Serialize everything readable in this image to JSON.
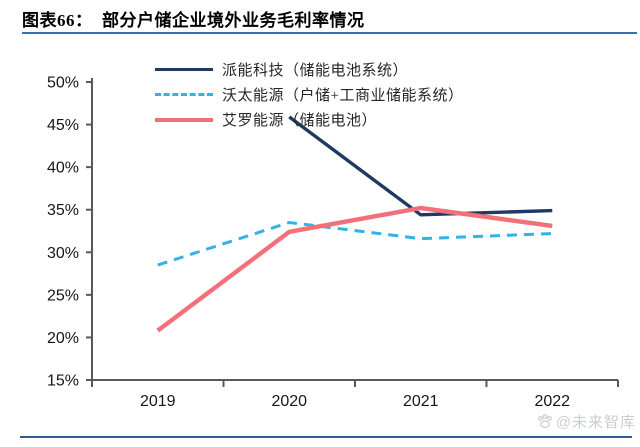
{
  "page": {
    "title": "图表66：  部分户储企业境外业务毛利率情况",
    "watermark_text": "@未来智库",
    "title_rule_color": "#2E74B5",
    "footer_rule_color": "#2b5c96"
  },
  "chart_data": {
    "type": "line",
    "title": "部分户储企业境外业务毛利率情况",
    "categories": [
      "2019",
      "2020",
      "2021",
      "2022"
    ],
    "series": [
      {
        "name": "派能科技（储能电池系统）",
        "color": "#1F3864",
        "style": "solid",
        "width": 3.4,
        "values": [
          null,
          45.9,
          34.4,
          34.9
        ]
      },
      {
        "name": "沃太能源（户储+工商业储能系统）",
        "color": "#2FB3E8",
        "style": "dashed",
        "width": 3.0,
        "values": [
          28.5,
          33.5,
          31.6,
          32.2
        ]
      },
      {
        "name": "艾罗能源（储能电池）",
        "color": "#F2707A",
        "style": "solid",
        "width": 4.4,
        "values": [
          20.8,
          32.4,
          35.2,
          33.1
        ]
      }
    ],
    "xlabel": "",
    "ylabel": "",
    "ylim": [
      15,
      50
    ],
    "ytick_step": 5,
    "ytick_labels": [
      "15%",
      "20%",
      "25%",
      "30%",
      "35%",
      "40%",
      "45%",
      "50%"
    ],
    "ytick_format": "percent",
    "grid": false,
    "legend_position": "top",
    "axis_color": "#595959"
  }
}
